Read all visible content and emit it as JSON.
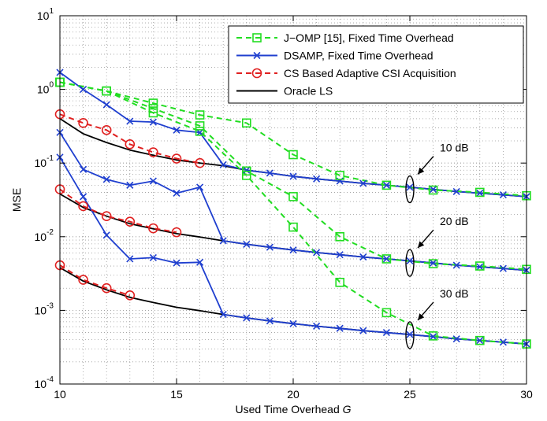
{
  "chart_data": {
    "type": "line",
    "title": "",
    "xlabel": "Used Time Overhead",
    "xlabel_var": "G",
    "ylabel": "MSE",
    "xlim": [
      10,
      30
    ],
    "ylim": [
      0.0001,
      10
    ],
    "yscale": "log",
    "grid": "dotted, major and minor",
    "legend_position": "top-right",
    "x_ticks": [
      "10",
      "15",
      "20",
      "25",
      "30"
    ],
    "y_ticks": [
      {
        "base": "10",
        "exp": "1"
      },
      {
        "base": "10",
        "exp": "0"
      },
      {
        "base": "10",
        "exp": "-1"
      },
      {
        "base": "10",
        "exp": "-2"
      },
      {
        "base": "10",
        "exp": "-3"
      },
      {
        "base": "10",
        "exp": "-4"
      }
    ],
    "annotations": [
      "10 dB",
      "20 dB",
      "30 dB"
    ],
    "legend": [
      {
        "label": "J−OMP [15], Fixed Time Overhead",
        "color": "#22dd22",
        "dash": "dashed",
        "marker": "square"
      },
      {
        "label": "DSAMP, Fixed Time Overhead",
        "color": "#1f3fcf",
        "dash": "solid",
        "marker": "x"
      },
      {
        "label": "CS Based Adaptive CSI Acquisition",
        "color": "#e02020",
        "dash": "dashed",
        "marker": "circle"
      },
      {
        "label": "Oracle LS",
        "color": "#000000",
        "dash": "solid",
        "marker": "none"
      }
    ],
    "series": [
      {
        "group": "J-OMP",
        "snr": "10 dB",
        "x": [
          10,
          12,
          14,
          16,
          18,
          20,
          22,
          24,
          26,
          28,
          30
        ],
        "y": [
          1.25,
          0.95,
          0.65,
          0.45,
          0.35,
          0.13,
          0.068,
          0.05,
          0.043,
          0.04,
          0.036
        ]
      },
      {
        "group": "J-OMP",
        "snr": "20 dB",
        "x": [
          10,
          12,
          14,
          16,
          18,
          20,
          22,
          24,
          26,
          28,
          30
        ],
        "y": [
          1.25,
          0.95,
          0.55,
          0.32,
          0.078,
          0.035,
          0.01,
          0.005,
          0.0043,
          0.004,
          0.0036
        ]
      },
      {
        "group": "J-OMP",
        "snr": "30 dB",
        "x": [
          10,
          12,
          14,
          16,
          18,
          20,
          22,
          24,
          26,
          28,
          30
        ],
        "y": [
          1.25,
          0.95,
          0.48,
          0.27,
          0.068,
          0.0135,
          0.0024,
          0.00093,
          0.00045,
          0.00039,
          0.00035
        ]
      },
      {
        "group": "DSAMP",
        "snr": "10 dB",
        "x": [
          10,
          11,
          12,
          13,
          14,
          15,
          16,
          17,
          18,
          19,
          20,
          21,
          22,
          23,
          24,
          25,
          26,
          27,
          28,
          29,
          30
        ],
        "y": [
          1.7,
          1.0,
          0.62,
          0.37,
          0.36,
          0.28,
          0.26,
          0.095,
          0.08,
          0.073,
          0.066,
          0.061,
          0.057,
          0.053,
          0.05,
          0.047,
          0.044,
          0.041,
          0.039,
          0.037,
          0.035
        ]
      },
      {
        "group": "DSAMP",
        "snr": "20 dB",
        "x": [
          10,
          11,
          12,
          13,
          14,
          15,
          16,
          17,
          18,
          19,
          20,
          21,
          22,
          23,
          24,
          25,
          26,
          27,
          28,
          29,
          30
        ],
        "y": [
          0.26,
          0.082,
          0.06,
          0.05,
          0.057,
          0.039,
          0.047,
          0.0088,
          0.0079,
          0.0072,
          0.0066,
          0.0061,
          0.0057,
          0.0053,
          0.005,
          0.0047,
          0.0044,
          0.0041,
          0.0039,
          0.0037,
          0.0035
        ]
      },
      {
        "group": "DSAMP",
        "snr": "30 dB",
        "x": [
          10,
          11,
          12,
          13,
          14,
          15,
          16,
          17,
          18,
          19,
          20,
          21,
          22,
          23,
          24,
          25,
          26,
          27,
          28,
          29,
          30
        ],
        "y": [
          0.12,
          0.035,
          0.0105,
          0.005,
          0.0052,
          0.0044,
          0.0045,
          0.00088,
          0.00079,
          0.00072,
          0.00066,
          0.00061,
          0.00057,
          0.00053,
          0.0005,
          0.00047,
          0.00044,
          0.00041,
          0.00039,
          0.00037,
          0.00035
        ]
      },
      {
        "group": "CS Adaptive",
        "snr": "10 dB",
        "x": [
          10,
          11,
          12,
          13,
          14,
          15,
          16
        ],
        "y": [
          0.46,
          0.35,
          0.28,
          0.18,
          0.14,
          0.115,
          0.1
        ]
      },
      {
        "group": "CS Adaptive",
        "snr": "20 dB",
        "x": [
          10,
          11,
          12,
          13,
          14,
          15
        ],
        "y": [
          0.044,
          0.026,
          0.019,
          0.016,
          0.013,
          0.0115
        ]
      },
      {
        "group": "CS Adaptive",
        "snr": "30 dB",
        "x": [
          10,
          11,
          12,
          13
        ],
        "y": [
          0.0041,
          0.0026,
          0.002,
          0.0016
        ]
      },
      {
        "group": "Oracle LS",
        "snr": "10 dB",
        "x": [
          10,
          11,
          12,
          13,
          14,
          15,
          16,
          17,
          18,
          19,
          20,
          21,
          22,
          23,
          24,
          25,
          26,
          27,
          28,
          29,
          30
        ],
        "y": [
          0.4,
          0.25,
          0.19,
          0.15,
          0.128,
          0.11,
          0.1,
          0.092,
          0.08,
          0.073,
          0.066,
          0.061,
          0.057,
          0.053,
          0.05,
          0.047,
          0.044,
          0.041,
          0.039,
          0.037,
          0.035
        ]
      },
      {
        "group": "Oracle LS",
        "snr": "20 dB",
        "x": [
          10,
          11,
          12,
          13,
          14,
          15,
          16,
          17,
          18,
          19,
          20,
          21,
          22,
          23,
          24,
          25,
          26,
          27,
          28,
          29,
          30
        ],
        "y": [
          0.038,
          0.025,
          0.019,
          0.015,
          0.0128,
          0.011,
          0.0099,
          0.0088,
          0.0079,
          0.0072,
          0.0066,
          0.0061,
          0.0057,
          0.0053,
          0.005,
          0.0047,
          0.0044,
          0.0041,
          0.0039,
          0.0037,
          0.0035
        ]
      },
      {
        "group": "Oracle LS",
        "snr": "30 dB",
        "x": [
          10,
          11,
          12,
          13,
          14,
          15,
          16,
          17,
          18,
          19,
          20,
          21,
          22,
          23,
          24,
          25,
          26,
          27,
          28,
          29,
          30
        ],
        "y": [
          0.0038,
          0.0025,
          0.0019,
          0.0015,
          0.00128,
          0.0011,
          0.00099,
          0.00088,
          0.00079,
          0.00072,
          0.00066,
          0.00061,
          0.00057,
          0.00053,
          0.0005,
          0.00047,
          0.00044,
          0.00041,
          0.00039,
          0.00037,
          0.00035
        ]
      }
    ]
  }
}
